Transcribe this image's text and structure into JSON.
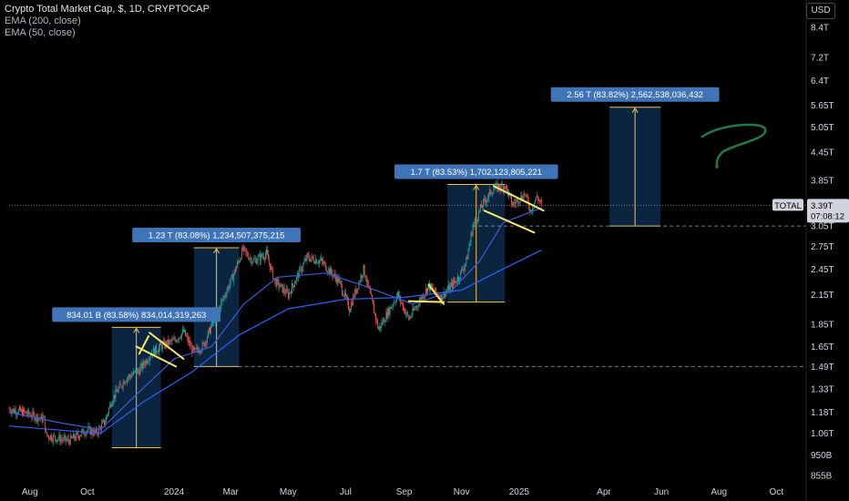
{
  "header": {
    "title": "Crypto Total Market Cap, $, 1D, CRYPTOCAP",
    "indicators": [
      "EMA (200, close)",
      "EMA (50, close)"
    ]
  },
  "currency_button": "USD",
  "colors": {
    "background": "#000000",
    "candle_up": "#26a69a",
    "candle_down": "#ef5350",
    "ema200": "#2962ff",
    "ema50": "#3c5bd9",
    "box_fill": "#0d2a4a",
    "box_edge": "#f5c542",
    "label_bg": "#3f74b9",
    "flag_line": "#f5e663",
    "handwriting": "#1f7a4a"
  },
  "price_tag": {
    "symbol": "TOTAL",
    "price": "3.39T",
    "countdown": "07:08:12"
  },
  "chart_data": {
    "type": "candlestick",
    "x_axis": {
      "ticks": [
        "Aug",
        "Oct",
        "2024",
        "Mar",
        "May",
        "Jul",
        "Sep",
        "Nov",
        "2025",
        "Apr",
        "Jun",
        "Aug",
        "Oct"
      ],
      "range": [
        "2023-07-10",
        "2025-10-20"
      ]
    },
    "y_axis": {
      "scale": "log",
      "ticks": [
        "8.4T",
        "7.2T",
        "6.4T",
        "5.65T",
        "5.05T",
        "4.45T",
        "3.85T",
        "3.05T",
        "2.75T",
        "2.45T",
        "2.15T",
        "1.85T",
        "1.65T",
        "1.49T",
        "1.33T",
        "1.18T",
        "1.06T",
        "950B",
        "855B"
      ],
      "tick_values": [
        8.4,
        7.2,
        6.4,
        5.65,
        5.05,
        4.45,
        3.85,
        3.05,
        2.75,
        2.45,
        2.15,
        1.85,
        1.65,
        1.49,
        1.33,
        1.18,
        1.06,
        0.95,
        0.855
      ],
      "unit": "T"
    },
    "price_path": [
      [
        "2023-07-10",
        1.2
      ],
      [
        "2023-07-25",
        1.18
      ],
      [
        "2023-08-16",
        1.14
      ],
      [
        "2023-08-18",
        1.05
      ],
      [
        "2023-09-11",
        1.02
      ],
      [
        "2023-10-01",
        1.08
      ],
      [
        "2023-10-10",
        1.06
      ],
      [
        "2023-10-20",
        1.13
      ],
      [
        "2023-10-27",
        1.26
      ],
      [
        "2023-11-10",
        1.4
      ],
      [
        "2023-11-25",
        1.46
      ],
      [
        "2023-12-08",
        1.6
      ],
      [
        "2023-12-20",
        1.66
      ],
      [
        "2024-01-01",
        1.7
      ],
      [
        "2024-01-11",
        1.78
      ],
      [
        "2024-01-22",
        1.6
      ],
      [
        "2024-02-01",
        1.66
      ],
      [
        "2024-02-15",
        1.95
      ],
      [
        "2024-03-01",
        2.3
      ],
      [
        "2024-03-14",
        2.7
      ],
      [
        "2024-03-25",
        2.55
      ],
      [
        "2024-04-08",
        2.65
      ],
      [
        "2024-04-17",
        2.3
      ],
      [
        "2024-05-01",
        2.15
      ],
      [
        "2024-05-21",
        2.6
      ],
      [
        "2024-06-05",
        2.55
      ],
      [
        "2024-06-24",
        2.3
      ],
      [
        "2024-07-05",
        2.0
      ],
      [
        "2024-07-20",
        2.45
      ],
      [
        "2024-08-05",
        1.8
      ],
      [
        "2024-08-25",
        2.15
      ],
      [
        "2024-09-06",
        1.9
      ],
      [
        "2024-09-27",
        2.25
      ],
      [
        "2024-10-10",
        2.12
      ],
      [
        "2024-10-29",
        2.35
      ],
      [
        "2024-11-06",
        2.55
      ],
      [
        "2024-11-13",
        3.05
      ],
      [
        "2024-11-23",
        3.4
      ],
      [
        "2024-12-05",
        3.7
      ],
      [
        "2024-12-17",
        3.75
      ],
      [
        "2024-12-25",
        3.4
      ],
      [
        "2025-01-07",
        3.6
      ],
      [
        "2025-01-13",
        3.3
      ],
      [
        "2025-01-20",
        3.55
      ],
      [
        "2025-01-25",
        3.39
      ]
    ],
    "ema200_path": [
      [
        "2023-07-10",
        1.1
      ],
      [
        "2023-10-15",
        1.06
      ],
      [
        "2023-12-01",
        1.25
      ],
      [
        "2024-01-20",
        1.45
      ],
      [
        "2024-03-10",
        1.75
      ],
      [
        "2024-05-01",
        2.0
      ],
      [
        "2024-07-01",
        2.1
      ],
      [
        "2024-09-01",
        2.12
      ],
      [
        "2024-11-01",
        2.2
      ],
      [
        "2024-12-15",
        2.45
      ],
      [
        "2025-01-25",
        2.7
      ]
    ],
    "ema50_path": [
      [
        "2023-07-10",
        1.18
      ],
      [
        "2023-09-01",
        1.12
      ],
      [
        "2023-10-15",
        1.08
      ],
      [
        "2023-11-15",
        1.25
      ],
      [
        "2024-01-01",
        1.55
      ],
      [
        "2024-02-10",
        1.65
      ],
      [
        "2024-03-15",
        2.05
      ],
      [
        "2024-04-20",
        2.35
      ],
      [
        "2024-06-10",
        2.4
      ],
      [
        "2024-07-20",
        2.25
      ],
      [
        "2024-09-10",
        2.05
      ],
      [
        "2024-10-20",
        2.18
      ],
      [
        "2024-11-20",
        2.55
      ],
      [
        "2024-12-15",
        3.1
      ],
      [
        "2025-01-25",
        3.35
      ]
    ],
    "measure_boxes": [
      {
        "start": "2023-10-27",
        "end": "2023-12-18",
        "low": 0.985,
        "high": 1.82,
        "label": "834.01 B (83.58%) 834,014,319,263"
      },
      {
        "start": "2024-01-22",
        "end": "2024-03-10",
        "low": 1.49,
        "high": 2.73,
        "label": "1.23 T (83.08%) 1,234,507,375,215"
      },
      {
        "start": "2024-10-17",
        "end": "2024-12-17",
        "low": 2.07,
        "high": 3.77,
        "label": "1.7 T (83.53%) 1,702,123,805,221"
      },
      {
        "start": "2025-04-07",
        "end": "2025-05-31",
        "low": 3.05,
        "high": 5.59,
        "label": "2.56 T (83.82%) 2,562,538,036,432"
      }
    ],
    "flag_lines": [
      [
        [
          "2023-11-25",
          1.59
        ],
        [
          "2023-12-05",
          1.74
        ]
      ],
      [
        [
          "2023-12-06",
          1.77
        ],
        [
          "2024-01-11",
          1.55
        ]
      ],
      [
        [
          "2023-11-22",
          1.65
        ],
        [
          "2024-01-03",
          1.49
        ]
      ],
      [
        [
          "2024-09-27",
          2.26
        ],
        [
          "2024-10-13",
          2.05
        ]
      ],
      [
        [
          "2024-09-06",
          2.08
        ],
        [
          "2024-10-13",
          2.07
        ]
      ],
      [
        [
          "2024-12-05",
          3.74
        ],
        [
          "2025-01-27",
          3.3
        ]
      ],
      [
        [
          "2024-11-25",
          3.3
        ],
        [
          "2025-01-17",
          2.95
        ]
      ]
    ],
    "reference_lines": [
      {
        "value": 3.39,
        "style": "dotted",
        "from": "2023-07-10"
      },
      {
        "value": 3.05,
        "style": "dashed",
        "from": "2024-11-12"
      },
      {
        "value": 1.49,
        "style": "dashed",
        "from": "2024-01-22"
      }
    ]
  }
}
